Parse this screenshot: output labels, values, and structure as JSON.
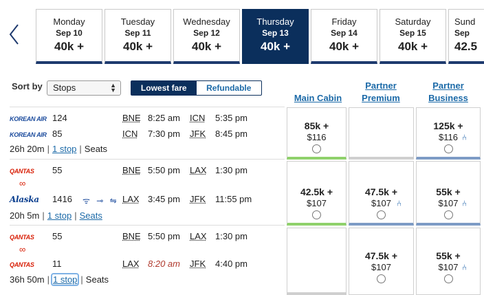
{
  "days": [
    {
      "name": "Monday",
      "date": "Sep 10",
      "price": "40k +"
    },
    {
      "name": "Tuesday",
      "date": "Sep 11",
      "price": "40k +"
    },
    {
      "name": "Wednesday",
      "date": "Sep 12",
      "price": "40k +"
    },
    {
      "name": "Thursday",
      "date": "Sep 13",
      "price": "40k +"
    },
    {
      "name": "Friday",
      "date": "Sep 14",
      "price": "40k +"
    },
    {
      "name": "Saturday",
      "date": "Sep 15",
      "price": "40k +"
    },
    {
      "name": "Sund",
      "date": "Sep",
      "price": "42.5"
    }
  ],
  "controls": {
    "sort_label": "Sort by",
    "sort_value": "Stops",
    "fare_lowest": "Lowest fare",
    "fare_refundable": "Refundable"
  },
  "cabins": {
    "main": "Main Cabin",
    "premium_1": "Partner",
    "premium_2": "Premium",
    "business_1": "Partner",
    "business_2": "Business"
  },
  "rows": [
    {
      "segments": [
        {
          "logo": "KOREAN AIR",
          "flight": "124",
          "origin": "BNE",
          "dep": "8:25 am",
          "dest": "ICN",
          "arr": "5:35 pm"
        },
        {
          "logo": "KOREAN AIR",
          "flight": "85",
          "origin": "ICN",
          "dep": "7:30 pm",
          "dest": "JFK",
          "arr": "8:45 pm"
        }
      ],
      "duration": "26h 20m",
      "stops": "1 stop",
      "seats": "Seats",
      "main": {
        "miles": "85k +",
        "usd": "$116"
      },
      "business": {
        "miles": "125k +",
        "usd": "$116"
      }
    },
    {
      "segments": [
        {
          "logo": "QANTAS",
          "flight": "55",
          "origin": "BNE",
          "dep": "5:50 pm",
          "dest": "LAX",
          "arr": "1:30 pm"
        },
        {
          "logo": "Alaska",
          "flight": "1416",
          "origin": "LAX",
          "dep": "3:45 pm",
          "dest": "JFK",
          "arr": "11:55 pm",
          "amenities": "ᯤ ⊸ ⇋"
        }
      ],
      "infinity": "∞",
      "duration": "20h 5m",
      "stops": "1 stop",
      "seats": "Seats",
      "main": {
        "miles": "42.5k +",
        "usd": "$107"
      },
      "premium": {
        "miles": "47.5k +",
        "usd": "$107"
      },
      "business": {
        "miles": "55k +",
        "usd": "$107"
      }
    },
    {
      "segments": [
        {
          "logo": "QANTAS",
          "flight": "55",
          "origin": "BNE",
          "dep": "5:50 pm",
          "dest": "LAX",
          "arr": "1:30 pm"
        },
        {
          "logo": "QANTAS",
          "flight": "11",
          "origin": "LAX",
          "dep": "8:20 am",
          "dest": "JFK",
          "arr": "4:40 pm"
        }
      ],
      "infinity": "∞",
      "duration": "36h 50m",
      "stops": "1 stop",
      "seats": "Seats",
      "premium": {
        "miles": "47.5k +",
        "usd": "$107"
      },
      "business": {
        "miles": "55k +",
        "usd": "$107"
      }
    }
  ],
  "icons": {
    "prev": "chevron-left-icon",
    "seat": "seat-icon",
    "radio": "radio-icon"
  },
  "colors": {
    "selected_day": "#0b2f5c",
    "link": "#1c6aa8",
    "main_bar": "#8fd16b",
    "partner_bar": "#7d9bc5"
  }
}
